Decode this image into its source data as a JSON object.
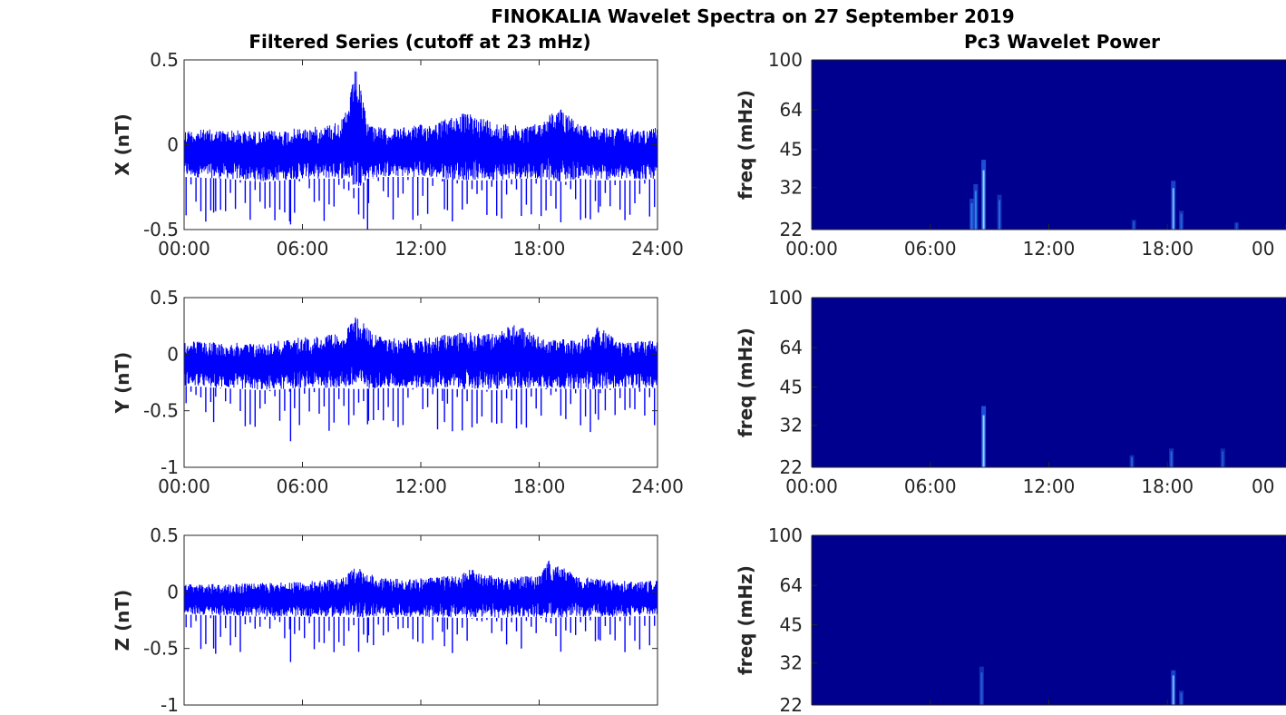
{
  "figure": {
    "title": "FINOKALIA Wavelet Spectra on 27 September 2019",
    "left_column_title": "Filtered Series (cutoff at 23 mHz)",
    "right_column_title": "Pc3 Wavelet Power"
  },
  "chart_data": [
    {
      "type": "line",
      "component": "X",
      "ylabel": "X (nT)",
      "xlim": [
        "00:00",
        "24:00"
      ],
      "ylim": [
        -0.5,
        0.5
      ],
      "x_ticks": [
        "00:00",
        "06:00",
        "12:00",
        "18:00",
        "24:00"
      ],
      "y_ticks": [
        "-0.5",
        "0",
        "0.5"
      ],
      "color": "#0000ff",
      "series_hours": [
        0,
        2,
        4,
        6,
        7,
        8,
        8.3,
        8.7,
        9.3,
        10,
        11,
        12,
        13,
        14,
        15,
        16,
        17,
        18,
        18.6,
        19.3,
        20,
        21,
        22,
        23,
        24
      ],
      "upper_envelope": [
        0.09,
        0.09,
        0.08,
        0.1,
        0.11,
        0.15,
        0.22,
        0.46,
        0.14,
        0.1,
        0.1,
        0.12,
        0.14,
        0.19,
        0.17,
        0.13,
        0.11,
        0.13,
        0.19,
        0.22,
        0.12,
        0.1,
        0.1,
        0.09,
        0.1
      ],
      "lower_envelope": [
        -0.19,
        -0.2,
        -0.22,
        -0.2,
        -0.2,
        -0.2,
        -0.21,
        -0.27,
        -0.2,
        -0.19,
        -0.19,
        -0.19,
        -0.2,
        -0.21,
        -0.21,
        -0.21,
        -0.2,
        -0.2,
        -0.21,
        -0.22,
        -0.2,
        -0.21,
        -0.21,
        -0.21,
        -0.2
      ],
      "dip_minima": [
        -0.4,
        -0.47,
        -0.5,
        -0.38,
        -0.42,
        -0.4
      ]
    },
    {
      "type": "line",
      "component": "Y",
      "ylabel": "Y (nT)",
      "xlim": [
        "00:00",
        "24:00"
      ],
      "ylim": [
        -1,
        0.5
      ],
      "x_ticks": [
        "00:00",
        "06:00",
        "12:00",
        "18:00",
        "24:00"
      ],
      "y_ticks": [
        "-1",
        "-0.5",
        "0",
        "0.5"
      ],
      "color": "#0000ff",
      "series_hours": [
        0,
        2,
        4,
        6,
        8,
        8.7,
        10,
        12,
        14,
        16,
        16.5,
        18,
        20,
        21,
        22,
        24
      ],
      "upper_envelope": [
        0.12,
        0.1,
        0.1,
        0.15,
        0.18,
        0.33,
        0.15,
        0.14,
        0.2,
        0.18,
        0.31,
        0.15,
        0.12,
        0.25,
        0.12,
        0.12
      ],
      "lower_envelope": [
        -0.28,
        -0.3,
        -0.32,
        -0.3,
        -0.3,
        -0.31,
        -0.3,
        -0.3,
        -0.31,
        -0.32,
        -0.31,
        -0.3,
        -0.31,
        -0.31,
        -0.3,
        -0.3
      ],
      "dip_minima": [
        -0.6,
        -0.77,
        -0.62,
        -0.6,
        -0.62,
        -0.58
      ]
    },
    {
      "type": "line",
      "component": "Z",
      "ylabel": "Z (nT)",
      "xlim": [
        "00:00",
        "24:00"
      ],
      "ylim": [
        -1,
        0.5
      ],
      "x_ticks": [],
      "y_ticks": [
        "-1",
        "-0.5",
        "0",
        "0.5"
      ],
      "color": "#0000ff",
      "series_hours": [
        0,
        2,
        4,
        6,
        8,
        8.7,
        10,
        12,
        14,
        14.5,
        16,
        18,
        18.5,
        20,
        22,
        24
      ],
      "upper_envelope": [
        0.07,
        0.07,
        0.08,
        0.09,
        0.12,
        0.22,
        0.12,
        0.12,
        0.15,
        0.2,
        0.14,
        0.14,
        0.28,
        0.14,
        0.1,
        0.1
      ],
      "lower_envelope": [
        -0.2,
        -0.21,
        -0.22,
        -0.22,
        -0.22,
        -0.23,
        -0.22,
        -0.22,
        -0.23,
        -0.23,
        -0.23,
        -0.22,
        -0.23,
        -0.22,
        -0.22,
        -0.21
      ],
      "dip_minima": [
        -0.5,
        -0.62,
        -0.45,
        -0.48,
        -0.5,
        -0.42
      ]
    },
    {
      "type": "heatmap",
      "component": "X",
      "ylabel": "freq (mHz)",
      "xlim": [
        "00:00",
        "24:00"
      ],
      "ylim_mhz": [
        22,
        100
      ],
      "yscale": "log",
      "x_ticks": [
        "00:00",
        "06:00",
        "12:00",
        "18:00",
        "00"
      ],
      "y_ticks": [
        "100",
        "64",
        "45",
        "32",
        "22"
      ],
      "background_color": "#00008f",
      "bursts": [
        {
          "hour": 8.1,
          "top_mhz": 29,
          "intensity": 0.6
        },
        {
          "hour": 8.3,
          "top_mhz": 33,
          "intensity": 0.7
        },
        {
          "hour": 8.7,
          "top_mhz": 41,
          "intensity": 1.0
        },
        {
          "hour": 9.5,
          "top_mhz": 30,
          "intensity": 0.5
        },
        {
          "hour": 16.3,
          "top_mhz": 24,
          "intensity": 0.4
        },
        {
          "hour": 18.3,
          "top_mhz": 34,
          "intensity": 0.8
        },
        {
          "hour": 18.7,
          "top_mhz": 26,
          "intensity": 0.5
        },
        {
          "hour": 21.5,
          "top_mhz": 23.5,
          "intensity": 0.35
        }
      ]
    },
    {
      "type": "heatmap",
      "component": "Y",
      "ylabel": "freq (mHz)",
      "xlim": [
        "00:00",
        "24:00"
      ],
      "ylim_mhz": [
        22,
        100
      ],
      "yscale": "log",
      "x_ticks": [
        "00:00",
        "06:00",
        "12:00",
        "18:00",
        "00"
      ],
      "y_ticks": [
        "100",
        "64",
        "45",
        "32",
        "22"
      ],
      "background_color": "#00008f",
      "bursts": [
        {
          "hour": 8.7,
          "top_mhz": 38,
          "intensity": 1.0
        },
        {
          "hour": 16.2,
          "top_mhz": 24.5,
          "intensity": 0.45
        },
        {
          "hour": 18.2,
          "top_mhz": 26,
          "intensity": 0.5
        },
        {
          "hour": 20.8,
          "top_mhz": 26,
          "intensity": 0.4
        }
      ]
    },
    {
      "type": "heatmap",
      "component": "Z",
      "ylabel": "freq (mHz)",
      "xlim": [
        "00:00",
        "24:00"
      ],
      "ylim_mhz": [
        22,
        100
      ],
      "yscale": "log",
      "x_ticks": [],
      "y_ticks": [
        "100",
        "64",
        "45",
        "32",
        "22"
      ],
      "background_color": "#00008f",
      "bursts": [
        {
          "hour": 8.6,
          "top_mhz": 31,
          "intensity": 0.45
        },
        {
          "hour": 18.3,
          "top_mhz": 30,
          "intensity": 0.8
        },
        {
          "hour": 18.7,
          "top_mhz": 25,
          "intensity": 0.45
        }
      ]
    }
  ]
}
